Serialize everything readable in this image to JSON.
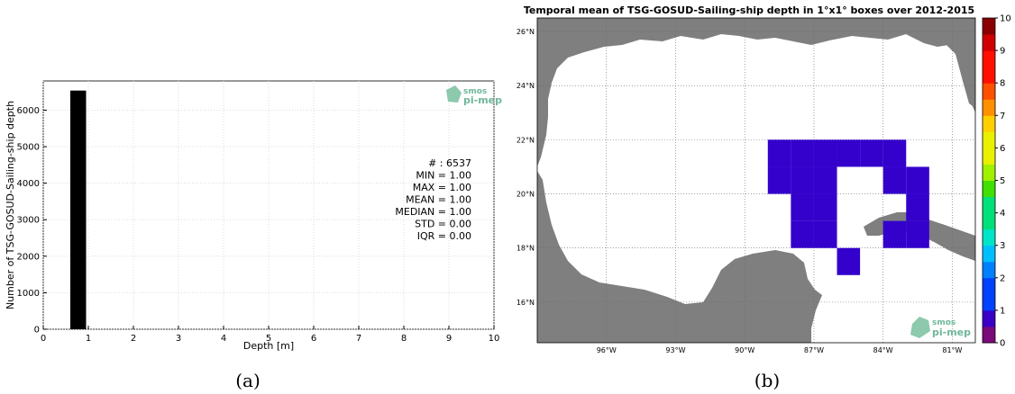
{
  "chart_data": [
    {
      "panel": "(a)",
      "type": "bar",
      "xlabel": "Depth [m]",
      "ylabel": "Number of TSG-GOSUD-Sailing-ship depth",
      "xlim": [
        0,
        10
      ],
      "ylim": [
        0,
        6800
      ],
      "xticks": [
        "0",
        "1",
        "2",
        "3",
        "4",
        "5",
        "6",
        "7",
        "8",
        "9",
        "10"
      ],
      "yticks": [
        "0",
        "1000",
        "2000",
        "3000",
        "4000",
        "5000",
        "6000"
      ],
      "grid": true,
      "bars": [
        {
          "x_start": 0.6,
          "x_end": 0.95,
          "value": 6537
        }
      ],
      "stats": [
        "# : 6537",
        "MIN = 1.00",
        "MAX =  1.00",
        "MEAN = 1.00",
        "MEDIAN = 1.00",
        "STD = 0.00",
        "IQR = 0.00"
      ],
      "logo": {
        "line1": "smos",
        "line2": "pi-mep"
      }
    },
    {
      "panel": "(b)",
      "type": "heatmap",
      "title": "Temporal mean of TSG-GOSUD-Sailing-ship depth in 1°x1° boxes over 2012-2015",
      "lon_range": [
        -99,
        -80
      ],
      "lat_range": [
        14.5,
        26.5
      ],
      "lon_ticks": [
        {
          "value": -96,
          "label": "96°W"
        },
        {
          "value": -93,
          "label": "93°W"
        },
        {
          "value": -90,
          "label": "90°W"
        },
        {
          "value": -87,
          "label": "87°W"
        },
        {
          "value": -84,
          "label": "84°W"
        },
        {
          "value": -81,
          "label": "81°W"
        }
      ],
      "lat_ticks": [
        {
          "value": 16,
          "label": "16°N"
        },
        {
          "value": 18,
          "label": "18°N"
        },
        {
          "value": 20,
          "label": "20°N"
        },
        {
          "value": 22,
          "label": "22°N"
        },
        {
          "value": 24,
          "label": "24°N"
        },
        {
          "value": 26,
          "label": "26°N"
        }
      ],
      "cells": [
        {
          "lon": -89,
          "lat": 21,
          "value": 1
        },
        {
          "lon": -88,
          "lat": 21,
          "value": 1
        },
        {
          "lon": -87,
          "lat": 21,
          "value": 1
        },
        {
          "lon": -86,
          "lat": 21,
          "value": 1
        },
        {
          "lon": -85,
          "lat": 21,
          "value": 1
        },
        {
          "lon": -84,
          "lat": 21,
          "value": 1
        },
        {
          "lon": -89,
          "lat": 20,
          "value": 1
        },
        {
          "lon": -88,
          "lat": 20,
          "value": 1
        },
        {
          "lon": -87,
          "lat": 20,
          "value": 1
        },
        {
          "lon": -84,
          "lat": 20,
          "value": 1
        },
        {
          "lon": -83,
          "lat": 20,
          "value": 1
        },
        {
          "lon": -88,
          "lat": 19,
          "value": 1
        },
        {
          "lon": -87,
          "lat": 19,
          "value": 1
        },
        {
          "lon": -83,
          "lat": 19,
          "value": 1
        },
        {
          "lon": -88,
          "lat": 18,
          "value": 1
        },
        {
          "lon": -87,
          "lat": 18,
          "value": 1
        },
        {
          "lon": -84,
          "lat": 18,
          "value": 1
        },
        {
          "lon": -83,
          "lat": 18,
          "value": 1
        },
        {
          "lon": -86,
          "lat": 17,
          "value": 1
        }
      ],
      "colorbar": {
        "min": 0,
        "max": 10,
        "ticks": [
          "0",
          "1",
          "2",
          "3",
          "4",
          "5",
          "6",
          "7",
          "8",
          "9",
          "10"
        ]
      },
      "cell_color": "#3300cc",
      "land_color": "#7f7f7f",
      "logo": {
        "line1": "smos",
        "line2": "pi-mep"
      }
    }
  ]
}
